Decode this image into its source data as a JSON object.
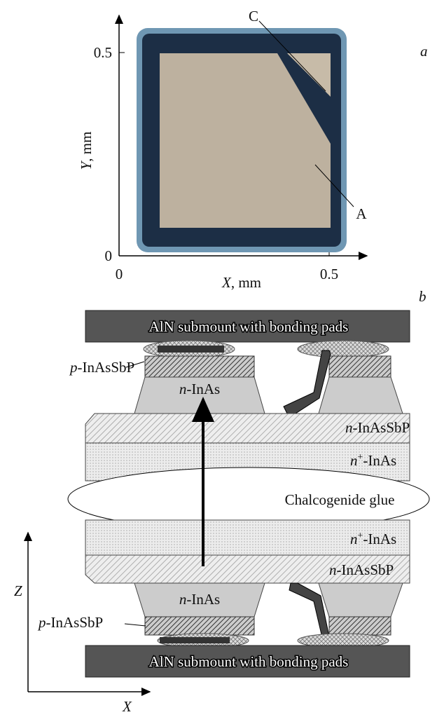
{
  "panel_a": {
    "label": "a",
    "y_axis_label": {
      "var": "Y",
      "rest": ", mm"
    },
    "x_axis_label": {
      "var": "X",
      "rest": ", mm"
    },
    "y_ticks": [
      "0",
      "0.5"
    ],
    "x_ticks": [
      "0",
      "0.5"
    ],
    "callouts": [
      "C",
      "A"
    ]
  },
  "panel_b": {
    "label": "b",
    "top_submount": "AlN submount with bonding pads",
    "bottom_submount": "AlN submount with bonding pads",
    "top_p_layer": {
      "prefix": "p",
      "rest": "-InAsSbP"
    },
    "top_n_inas": {
      "prefix": "n",
      "rest": "-InAs"
    },
    "top_n_inassbp": {
      "prefix": "n",
      "rest": "-InAsSbP"
    },
    "top_nplus": {
      "prefix": "n",
      "sup": "+",
      "rest": "-InAs"
    },
    "glue": "Chalcogenide glue",
    "bottom_nplus": {
      "prefix": "n",
      "sup": "+",
      "rest": "-InAs"
    },
    "bottom_n_inassbp": {
      "prefix": "n",
      "rest": "-InAsSbP"
    },
    "bottom_n_inas": {
      "prefix": "n",
      "rest": "-InAs"
    },
    "bottom_p_layer": {
      "prefix": "p",
      "rest": "-InAsSbP"
    },
    "axis_z": "Z",
    "axis_x": "X"
  }
}
